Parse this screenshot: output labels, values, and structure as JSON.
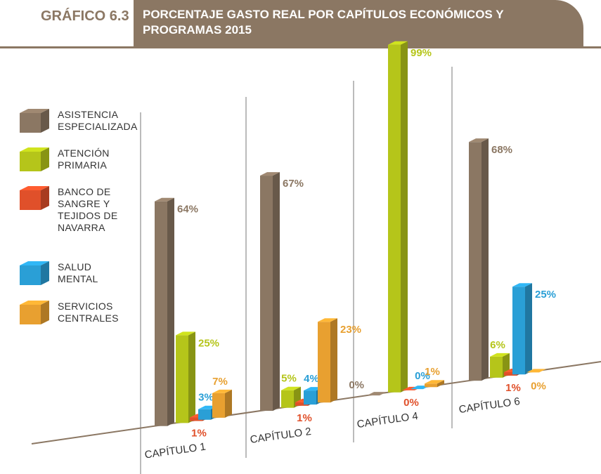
{
  "chart_data": {
    "type": "bar3d",
    "figure_label": "GRÁFICO 6.3",
    "title": "PORCENTAJE GASTO REAL POR CAPÍTULOS ECONÓMICOS Y PROGRAMAS 2015",
    "categories": [
      "CAPÍTULO 1",
      "CAPÍTULO 2",
      "CAPÍTULO 4",
      "CAPÍTULO 6"
    ],
    "series": [
      {
        "name": "ASISTENCIA ESPECIALIZADA",
        "color": "#8b7763",
        "values": [
          64,
          67,
          0,
          68
        ],
        "value_labels": [
          "64%",
          "67%",
          "0%",
          "68%"
        ]
      },
      {
        "name": "ATENCIÓN PRIMARIA",
        "color": "#b5c51a",
        "values": [
          25,
          5,
          99,
          6
        ],
        "value_labels": [
          "25%",
          "5%",
          "99%",
          "6%"
        ]
      },
      {
        "name": "BANCO DE SANGRE Y TEJIDOS DE NAVARRA",
        "color": "#e0502a",
        "values": [
          1,
          1,
          0,
          1
        ],
        "value_labels": [
          "1%",
          "1%",
          "0%",
          "1%"
        ]
      },
      {
        "name": "SALUD MENTAL",
        "color": "#2a9fd6",
        "values": [
          3,
          4,
          0,
          25
        ],
        "value_labels": [
          "3%",
          "4%",
          "0%",
          "25%"
        ]
      },
      {
        "name": "SERVICIOS CENTRALES",
        "color": "#e8a030",
        "values": [
          7,
          23,
          1,
          0
        ],
        "value_labels": [
          "7%",
          "23%",
          "1%",
          "0%"
        ]
      }
    ]
  }
}
